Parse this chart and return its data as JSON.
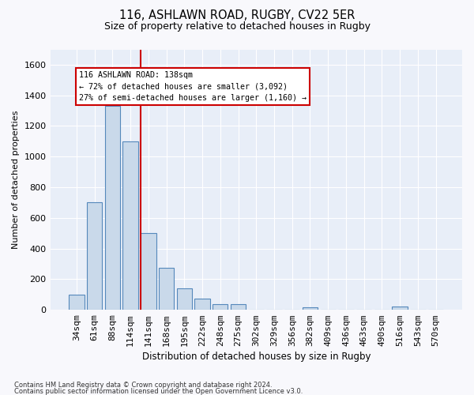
{
  "title": "116, ASHLAWN ROAD, RUGBY, CV22 5ER",
  "subtitle": "Size of property relative to detached houses in Rugby",
  "xlabel": "Distribution of detached houses by size in Rugby",
  "ylabel": "Number of detached properties",
  "bar_color": "#c9d9ea",
  "bar_edge_color": "#5588bb",
  "background_color": "#e8eef8",
  "fig_color": "#f8f8fc",
  "grid_color": "#ffffff",
  "vline_color": "#cc0000",
  "vline_x": 3.55,
  "annotation_text": "116 ASHLAWN ROAD: 138sqm\n← 72% of detached houses are smaller (3,092)\n27% of semi-detached houses are larger (1,160) →",
  "footer_line1": "Contains HM Land Registry data © Crown copyright and database right 2024.",
  "footer_line2": "Contains public sector information licensed under the Open Government Licence v3.0.",
  "categories": [
    "34sqm",
    "61sqm",
    "88sqm",
    "114sqm",
    "141sqm",
    "168sqm",
    "195sqm",
    "222sqm",
    "248sqm",
    "275sqm",
    "302sqm",
    "329sqm",
    "356sqm",
    "382sqm",
    "409sqm",
    "436sqm",
    "463sqm",
    "490sqm",
    "516sqm",
    "543sqm",
    "570sqm"
  ],
  "values": [
    100,
    700,
    1330,
    1100,
    500,
    275,
    140,
    75,
    35,
    35,
    0,
    0,
    0,
    15,
    0,
    0,
    0,
    0,
    20,
    0,
    0
  ],
  "ylim": [
    0,
    1700
  ],
  "yticks": [
    0,
    200,
    400,
    600,
    800,
    1000,
    1200,
    1400,
    1600
  ]
}
